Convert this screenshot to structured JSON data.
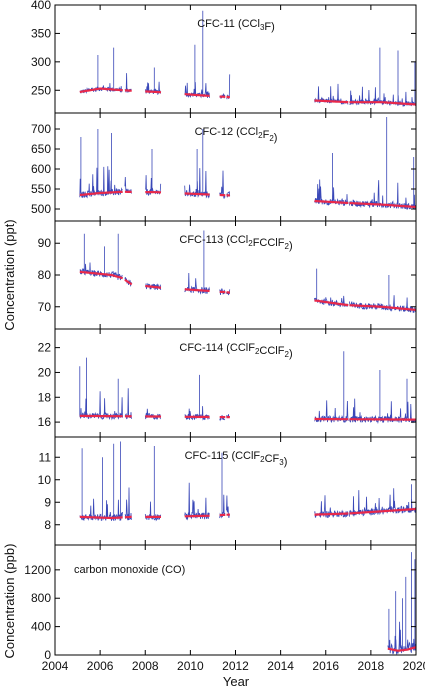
{
  "chart_data": {
    "type": "line",
    "x_axis": {
      "label": "Year",
      "range": [
        2004,
        2020
      ],
      "ticks": [
        "2004",
        "2006",
        "2008",
        "2010",
        "2012",
        "2014",
        "2016",
        "2018",
        "2020"
      ]
    },
    "y_labels": {
      "ppt": "Concentration (ppt)",
      "ppb": "Concentration (ppb)"
    },
    "colors": {
      "observations": "#3a48b8",
      "baseline": "#e8284a"
    },
    "segments": [
      [
        2005.1,
        2007.0
      ],
      [
        2007.1,
        2007.4
      ],
      [
        2008.0,
        2008.7
      ],
      [
        2009.75,
        2010.85
      ],
      [
        2011.3,
        2011.55
      ],
      [
        2011.6,
        2011.75
      ],
      [
        2015.5,
        2017.0
      ],
      [
        2017.05,
        2020.0
      ]
    ],
    "panels": [
      {
        "title": "CFC-11 (CCl3F)",
        "title_parts": [
          [
            "CFC-11 (CCl",
            false
          ],
          [
            "3",
            true
          ],
          [
            "F)",
            false
          ]
        ],
        "ylim": [
          210,
          400
        ],
        "ticks": [
          250,
          300,
          350,
          400
        ],
        "baseline": [
          [
            2005.1,
            247
          ],
          [
            2006.0,
            253
          ],
          [
            2007.0,
            250
          ],
          [
            2008.5,
            247
          ],
          [
            2010.5,
            241
          ],
          [
            2011.7,
            238
          ],
          [
            2015.5,
            232
          ],
          [
            2017.0,
            229
          ],
          [
            2018.5,
            229
          ],
          [
            2020.0,
            225
          ]
        ],
        "noise": 4,
        "spike_rate": 0.12,
        "spike_max": 45,
        "extremes": [
          [
            2005.9,
            312
          ],
          [
            2006.6,
            325
          ],
          [
            2007.6,
            305
          ],
          [
            2008.4,
            290
          ],
          [
            2010.2,
            330
          ],
          [
            2010.55,
            390
          ],
          [
            2018.4,
            325
          ],
          [
            2019.2,
            320
          ],
          [
            2019.95,
            300
          ]
        ],
        "subdata_segments": null
      },
      {
        "title": "CFC-12 (CCl2F2)",
        "title_parts": [
          [
            "CFC-12 (CCl",
            false
          ],
          [
            "2",
            true
          ],
          [
            "F",
            false
          ],
          [
            "2",
            true
          ],
          [
            ")",
            false
          ]
        ],
        "ylim": [
          470,
          740
        ],
        "ticks": [
          500,
          550,
          600,
          650,
          700
        ],
        "baseline": [
          [
            2005.1,
            535
          ],
          [
            2006.0,
            540
          ],
          [
            2007.0,
            543
          ],
          [
            2008.5,
            542
          ],
          [
            2010.5,
            537
          ],
          [
            2011.7,
            534
          ],
          [
            2015.5,
            520
          ],
          [
            2017.0,
            515
          ],
          [
            2018.5,
            511
          ],
          [
            2020.0,
            505
          ]
        ],
        "noise": 8,
        "spike_rate": 0.12,
        "spike_max": 80,
        "extremes": [
          [
            2005.15,
            680
          ],
          [
            2005.9,
            700
          ],
          [
            2006.5,
            690
          ],
          [
            2008.3,
            650
          ],
          [
            2010.3,
            650
          ],
          [
            2010.55,
            700
          ],
          [
            2016.3,
            640
          ],
          [
            2018.7,
            730
          ],
          [
            2019.9,
            630
          ]
        ],
        "subdata_segments": null
      },
      {
        "title": "CFC-113 (CCl2FCClF2)",
        "title_parts": [
          [
            "CFC-113 (CCl",
            false
          ],
          [
            "2",
            true
          ],
          [
            "FCClF",
            false
          ],
          [
            "2",
            true
          ],
          [
            ")",
            false
          ]
        ],
        "ylim": [
          63,
          97
        ],
        "ticks": [
          70,
          80,
          90
        ],
        "baseline": [
          [
            2005.1,
            81
          ],
          [
            2006.5,
            80
          ],
          [
            2007.0,
            79
          ],
          [
            2007.4,
            77
          ],
          [
            2008.7,
            76
          ],
          [
            2010.8,
            75
          ],
          [
            2011.7,
            74.5
          ],
          [
            2015.5,
            72
          ],
          [
            2017.0,
            70.5
          ],
          [
            2018.5,
            70
          ],
          [
            2020.0,
            69
          ]
        ],
        "noise": 1,
        "spike_rate": 0.08,
        "spike_max": 6,
        "extremes": [
          [
            2005.3,
            93
          ],
          [
            2006.2,
            89
          ],
          [
            2006.8,
            93
          ],
          [
            2010.6,
            94
          ],
          [
            2015.6,
            82
          ],
          [
            2018.8,
            80
          ]
        ],
        "subdata_segments": null
      },
      {
        "title": "CFC-114 (CClF2CClF2)",
        "title_parts": [
          [
            "CFC-114 (CClF",
            false
          ],
          [
            "2",
            true
          ],
          [
            "CClF",
            false
          ],
          [
            "2",
            true
          ],
          [
            ")",
            false
          ]
        ],
        "ylim": [
          14.8,
          23.5
        ],
        "ticks": [
          16,
          18,
          20,
          22
        ],
        "baseline": [
          [
            2005.1,
            16.5
          ],
          [
            2008.5,
            16.45
          ],
          [
            2011.7,
            16.4
          ],
          [
            2015.5,
            16.25
          ],
          [
            2020.0,
            16.2
          ]
        ],
        "noise": 0.25,
        "spike_rate": 0.1,
        "spike_max": 2.5,
        "extremes": [
          [
            2005.1,
            20.5
          ],
          [
            2005.4,
            21.2
          ],
          [
            2006.8,
            19.5
          ],
          [
            2010.4,
            19.8
          ],
          [
            2016.8,
            21.7
          ],
          [
            2018.4,
            20.2
          ],
          [
            2019.6,
            19.5
          ]
        ],
        "subdata_segments": null
      },
      {
        "title": "CFC-115 (CClF2CF3)",
        "title_parts": [
          [
            "CFC-115 (CClF",
            false
          ],
          [
            "2",
            true
          ],
          [
            "CF",
            false
          ],
          [
            "3",
            true
          ],
          [
            ")",
            false
          ]
        ],
        "ylim": [
          7.1,
          11.9
        ],
        "ticks": [
          8,
          9,
          10,
          11
        ],
        "baseline": [
          [
            2005.1,
            8.35
          ],
          [
            2006.5,
            8.3
          ],
          [
            2007.4,
            8.35
          ],
          [
            2008.7,
            8.35
          ],
          [
            2010.8,
            8.4
          ],
          [
            2011.7,
            8.45
          ],
          [
            2015.5,
            8.45
          ],
          [
            2017.0,
            8.5
          ],
          [
            2018.5,
            8.6
          ],
          [
            2020.0,
            8.7
          ]
        ],
        "noise": 0.15,
        "spike_rate": 0.12,
        "spike_max": 1.6,
        "extremes": [
          [
            2005.2,
            11.4
          ],
          [
            2006.1,
            11.0
          ],
          [
            2006.6,
            11.6
          ],
          [
            2006.9,
            11.7
          ],
          [
            2008.4,
            11.5
          ],
          [
            2011.4,
            11.2
          ],
          [
            2019.8,
            9.8
          ]
        ],
        "subdata_segments": null
      },
      {
        "title": "carbon monoxide (CO)",
        "title_parts": [
          [
            "carbon monoxide (CO)",
            false
          ]
        ],
        "ylim": [
          0,
          1550
        ],
        "ticks": [
          0,
          400,
          800,
          1200
        ],
        "baseline": [
          [
            2018.75,
            90
          ],
          [
            2019.2,
            60
          ],
          [
            2019.6,
            75
          ],
          [
            2020.0,
            110
          ]
        ],
        "noise": 60,
        "spike_rate": 0.35,
        "spike_max": 500,
        "extremes": [
          [
            2018.8,
            650
          ],
          [
            2019.1,
            900
          ],
          [
            2019.4,
            800
          ],
          [
            2019.55,
            1100
          ],
          [
            2019.8,
            1450
          ],
          [
            2019.95,
            1350
          ]
        ],
        "subdata_segments": [
          [
            2018.75,
            2020.0
          ]
        ]
      }
    ]
  }
}
